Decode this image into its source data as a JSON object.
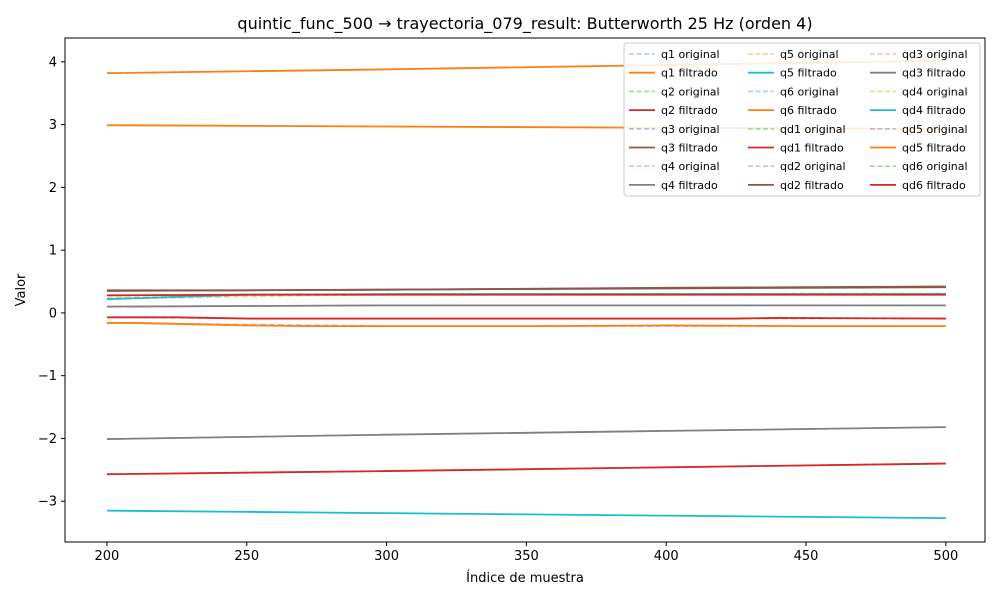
{
  "chart_data": {
    "type": "line",
    "title": "quintic_func_500 → trayectoria_079_result: Butterworth 25 Hz (orden 4)",
    "xlabel": "Índice de muestra",
    "ylabel": "Valor",
    "xlim": [
      185,
      514
    ],
    "ylim": [
      -3.65,
      4.38
    ],
    "xticks": [
      200,
      250,
      300,
      350,
      400,
      450,
      500
    ],
    "xtick_labels": [
      "200",
      "250",
      "300",
      "350",
      "400",
      "450",
      "500"
    ],
    "yticks": [
      -3,
      -2,
      -1,
      0,
      1,
      2,
      3,
      4
    ],
    "ytick_labels": [
      "−3",
      "−2",
      "−1",
      "0",
      "1",
      "2",
      "3",
      "4"
    ],
    "grid": false,
    "legend": {
      "placement": "top-right",
      "columns": 3
    },
    "series": [
      {
        "name": "q1 original",
        "color": "#aec7e8",
        "dash": true,
        "x": [
          200,
          300,
          400,
          500
        ],
        "y": [
          3.82,
          3.88,
          3.95,
          4.02
        ]
      },
      {
        "name": "q1 filtrado",
        "color": "#ff7f0e",
        "dash": false,
        "x": [
          200,
          300,
          400,
          500
        ],
        "y": [
          3.82,
          3.88,
          3.95,
          4.02
        ]
      },
      {
        "name": "q2 original",
        "color": "#98df8a",
        "dash": true,
        "x": [
          200,
          300,
          400,
          500
        ],
        "y": [
          -2.57,
          -2.52,
          -2.46,
          -2.4
        ]
      },
      {
        "name": "q2 filtrado",
        "color": "#d62728",
        "dash": false,
        "x": [
          200,
          300,
          400,
          500
        ],
        "y": [
          -2.57,
          -2.52,
          -2.46,
          -2.4
        ]
      },
      {
        "name": "q3 original",
        "color": "#c5b0d5",
        "dash": true,
        "x": [
          200,
          300,
          400,
          500
        ],
        "y": [
          0.35,
          0.37,
          0.4,
          0.42
        ]
      },
      {
        "name": "q3 filtrado",
        "color": "#8c564b",
        "dash": false,
        "x": [
          200,
          300,
          400,
          500
        ],
        "y": [
          0.35,
          0.37,
          0.4,
          0.42
        ]
      },
      {
        "name": "q4 original",
        "color": "#f7b6d2",
        "dash": true,
        "x": [
          200,
          300,
          400,
          500
        ],
        "y": [
          -2.01,
          -1.94,
          -1.88,
          -1.82
        ]
      },
      {
        "name": "q4 filtrado",
        "color": "#7f7f7f",
        "dash": false,
        "x": [
          200,
          300,
          400,
          500
        ],
        "y": [
          -2.01,
          -1.94,
          -1.88,
          -1.82
        ]
      },
      {
        "name": "q5 original",
        "color": "#dbdb8d",
        "dash": true,
        "x": [
          200,
          250,
          300,
          350,
          400,
          450,
          500
        ],
        "y": [
          0.24,
          0.28,
          0.29,
          0.3,
          0.3,
          0.31,
          0.31
        ]
      },
      {
        "name": "q5 filtrado",
        "color": "#17becf",
        "dash": false,
        "x": [
          200,
          250,
          300,
          350,
          400,
          450,
          500
        ],
        "y": [
          -3.15,
          -3.17,
          -3.19,
          -3.21,
          -3.23,
          -3.25,
          -3.27
        ]
      },
      {
        "name": "q6 original",
        "color": "#9edae5",
        "dash": true,
        "x": [
          200,
          300,
          400,
          500
        ],
        "y": [
          2.99,
          2.97,
          2.95,
          2.93
        ]
      },
      {
        "name": "q6 filtrado",
        "color": "#ff7f0e",
        "dash": false,
        "x": [
          200,
          300,
          400,
          500
        ],
        "y": [
          2.99,
          2.97,
          2.95,
          2.93
        ]
      },
      {
        "name": "qd1 original",
        "color": "#98df8a",
        "dash": true,
        "x": [
          200,
          250,
          300,
          350,
          400,
          450,
          500
        ],
        "y": [
          -0.07,
          -0.09,
          -0.09,
          -0.09,
          -0.09,
          -0.09,
          -0.09
        ]
      },
      {
        "name": "qd1 filtrado",
        "color": "#d62728",
        "dash": false,
        "x": [
          200,
          225,
          250,
          300,
          350,
          400,
          425,
          440,
          500
        ],
        "y": [
          -0.07,
          -0.07,
          -0.09,
          -0.09,
          -0.09,
          -0.09,
          -0.09,
          -0.08,
          -0.09
        ]
      },
      {
        "name": "qd2 original",
        "color": "#c7c7c7",
        "dash": true,
        "x": [
          200,
          300,
          400,
          500
        ],
        "y": [
          0.1,
          0.12,
          0.12,
          0.12
        ]
      },
      {
        "name": "qd2 filtrado",
        "color": "#8c564b",
        "dash": false,
        "x": [
          200,
          250,
          300,
          350,
          400,
          450,
          500
        ],
        "y": [
          0.36,
          0.36,
          0.37,
          0.38,
          0.39,
          0.4,
          0.41
        ]
      },
      {
        "name": "qd3 original",
        "color": "#f7b6d2",
        "dash": true,
        "x": [
          200,
          300,
          400,
          500
        ],
        "y": [
          0.1,
          0.12,
          0.12,
          0.12
        ]
      },
      {
        "name": "qd3 filtrado",
        "color": "#7f7f7f",
        "dash": false,
        "x": [
          200,
          250,
          300,
          350,
          400,
          450,
          500
        ],
        "y": [
          0.1,
          0.11,
          0.12,
          0.12,
          0.12,
          0.12,
          0.12
        ]
      },
      {
        "name": "qd4 original",
        "color": "#dbdb8d",
        "dash": true,
        "x": [
          200,
          300,
          400,
          500
        ],
        "y": [
          0.22,
          0.3,
          0.3,
          0.3
        ]
      },
      {
        "name": "qd4 filtrado",
        "color": "#17becf",
        "dash": false,
        "x": [
          200,
          250,
          300,
          350,
          400,
          450,
          500
        ],
        "y": [
          0.22,
          0.29,
          0.3,
          0.3,
          0.3,
          0.3,
          0.3
        ]
      },
      {
        "name": "qd5 original",
        "color": "#c5b0d5",
        "dash": true,
        "x": [
          200,
          300,
          400,
          500
        ],
        "y": [
          -0.16,
          -0.21,
          -0.21,
          -0.21
        ]
      },
      {
        "name": "qd5 filtrado",
        "color": "#ff7f0e",
        "dash": false,
        "x": [
          200,
          210,
          250,
          275,
          300,
          350,
          400,
          450,
          500
        ],
        "y": [
          -0.16,
          -0.16,
          -0.2,
          -0.21,
          -0.21,
          -0.21,
          -0.2,
          -0.21,
          -0.21
        ]
      },
      {
        "name": "qd6 original",
        "color": "#98df8a",
        "dash": true,
        "x": [
          200,
          300,
          400,
          500
        ],
        "y": [
          0.28,
          0.29,
          0.29,
          0.29
        ]
      },
      {
        "name": "qd6 filtrado",
        "color": "#d62728",
        "dash": false,
        "x": [
          200,
          250,
          300,
          350,
          400,
          450,
          500
        ],
        "y": [
          0.28,
          0.29,
          0.29,
          0.29,
          0.29,
          0.29,
          0.29
        ]
      }
    ]
  }
}
